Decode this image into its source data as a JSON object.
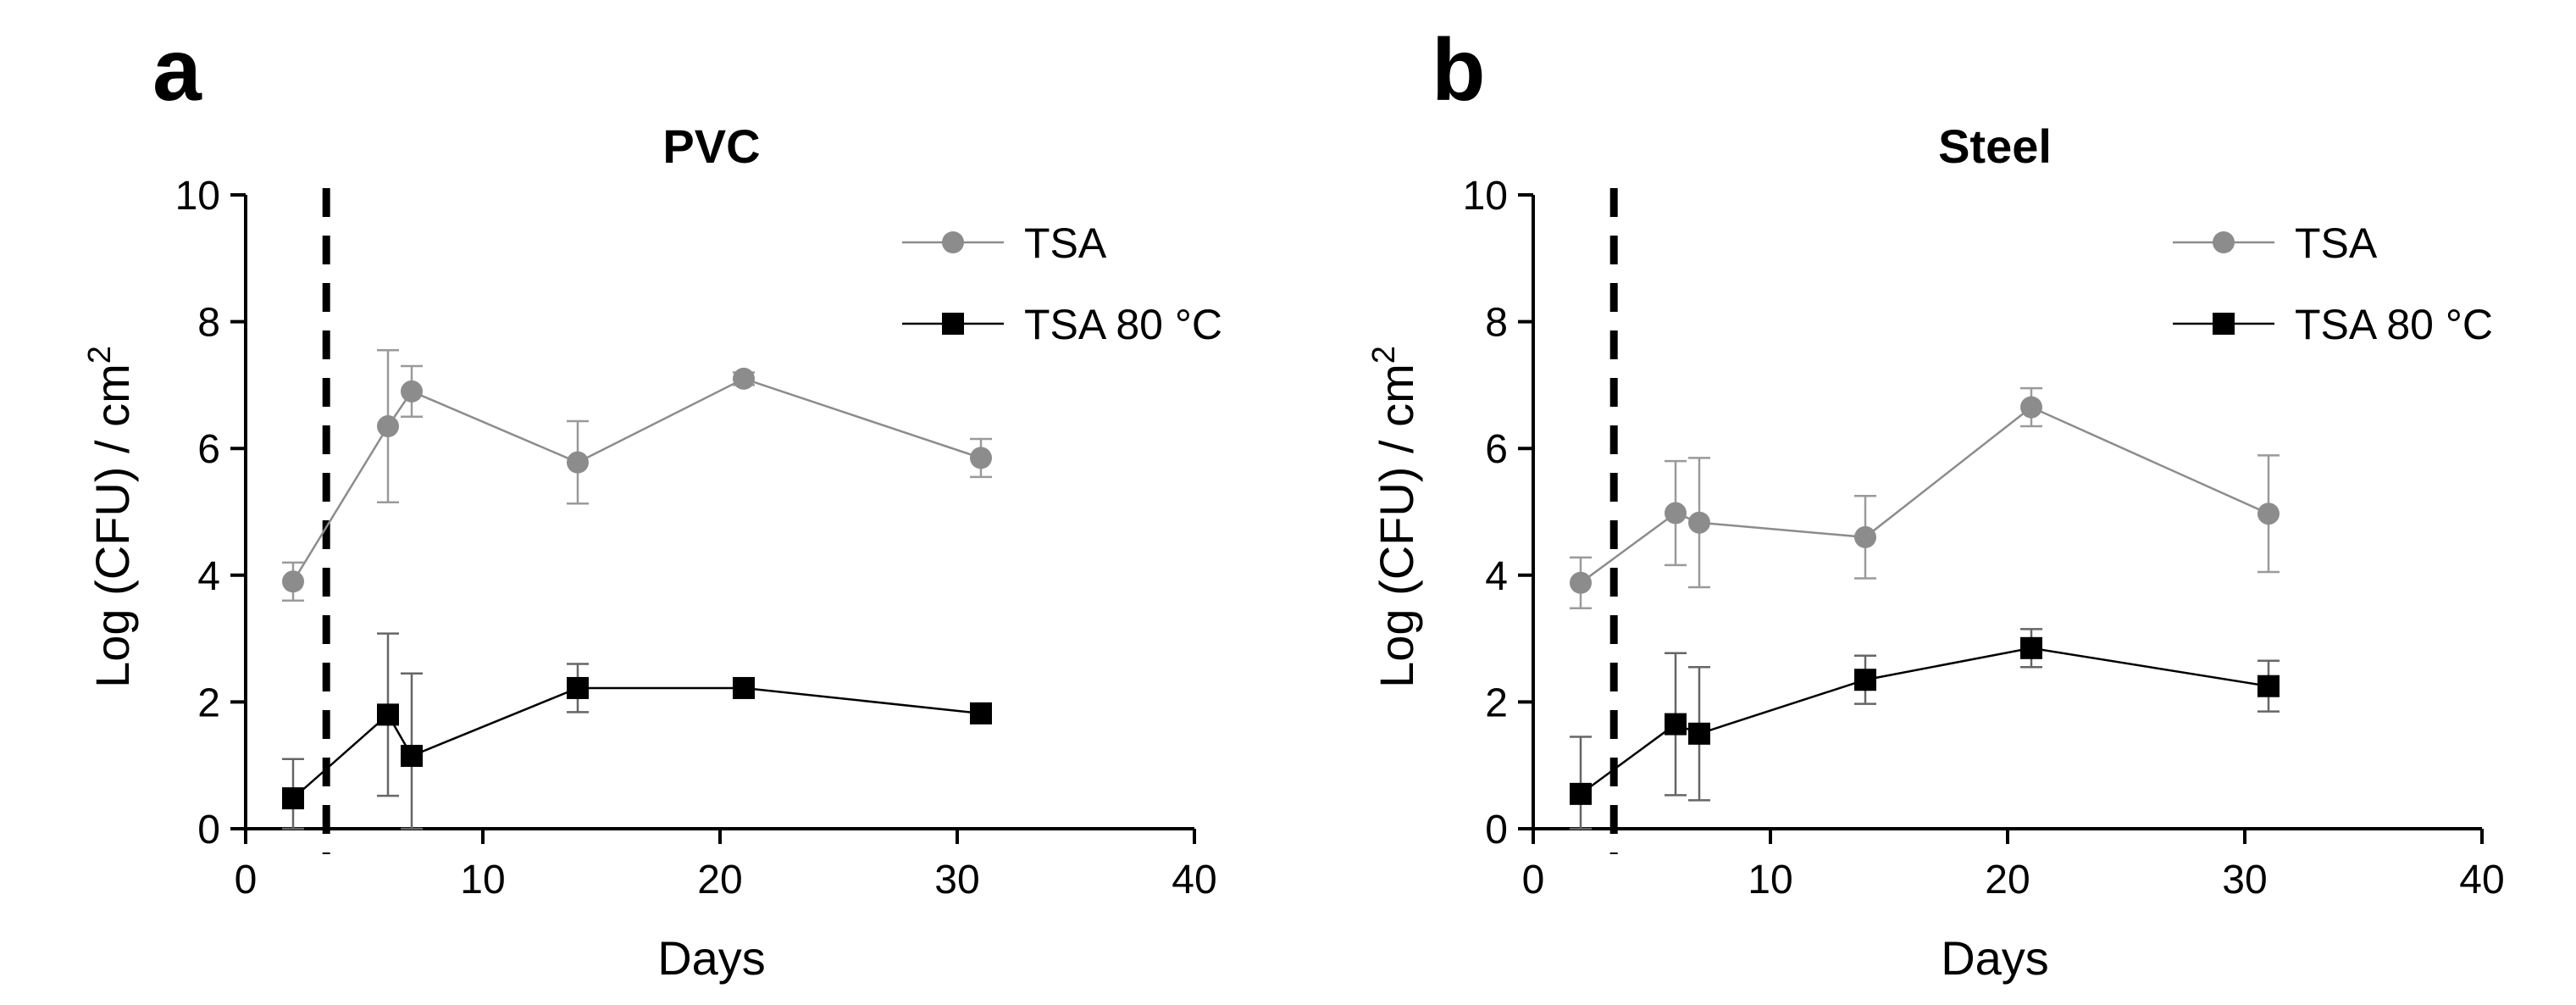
{
  "chart_data": [
    {
      "type": "line",
      "panel_label": "a",
      "title": "PVC",
      "xlabel": "Days",
      "ylabel": "Log (CFU) / cm",
      "ylabel_superscript": "2",
      "xlim": [
        0,
        40
      ],
      "ylim": [
        0,
        10
      ],
      "xticks": [
        "0",
        "10",
        "20",
        "30",
        "40"
      ],
      "yticks": [
        "0",
        "2",
        "4",
        "6",
        "8",
        "10"
      ],
      "vline_x": 3.4,
      "grid": false,
      "legend_position": "top-right",
      "series": [
        {
          "name": "TSA",
          "marker": "circle",
          "color": "#8c8c8c",
          "x": [
            2,
            6,
            7,
            14,
            21,
            31
          ],
          "y": [
            3.9,
            6.35,
            6.9,
            5.78,
            7.1,
            5.85
          ],
          "err": [
            0.3,
            1.2,
            0.4,
            0.65,
            0.1,
            0.3
          ]
        },
        {
          "name": "TSA 80 °C",
          "marker": "square",
          "color": "#000000",
          "x": [
            2,
            6,
            7,
            14,
            21,
            31
          ],
          "y": [
            0.48,
            1.8,
            1.15,
            2.22,
            2.22,
            1.82
          ],
          "err": [
            0.62,
            1.28,
            1.3,
            0.38,
            0.15,
            0.15
          ]
        }
      ]
    },
    {
      "type": "line",
      "panel_label": "b",
      "title": "Steel",
      "xlabel": "Days",
      "ylabel": "Log (CFU) / cm",
      "ylabel_superscript": "2",
      "xlim": [
        0,
        40
      ],
      "ylim": [
        0,
        10
      ],
      "xticks": [
        "0",
        "10",
        "20",
        "30",
        "40"
      ],
      "yticks": [
        "0",
        "2",
        "4",
        "6",
        "8",
        "10"
      ],
      "vline_x": 3.4,
      "grid": false,
      "legend_position": "top-right",
      "series": [
        {
          "name": "TSA",
          "marker": "circle",
          "color": "#8c8c8c",
          "x": [
            2,
            6,
            7,
            14,
            21,
            31
          ],
          "y": [
            3.88,
            4.98,
            4.83,
            4.6,
            6.65,
            4.97
          ],
          "err": [
            0.4,
            0.82,
            1.02,
            0.65,
            0.3,
            0.92
          ]
        },
        {
          "name": "TSA 80 °C",
          "marker": "square",
          "color": "#000000",
          "x": [
            2,
            6,
            7,
            14,
            21,
            31
          ],
          "y": [
            0.55,
            1.65,
            1.5,
            2.35,
            2.85,
            2.25
          ],
          "err": [
            0.9,
            1.12,
            1.05,
            0.38,
            0.3,
            0.4
          ]
        }
      ]
    }
  ]
}
